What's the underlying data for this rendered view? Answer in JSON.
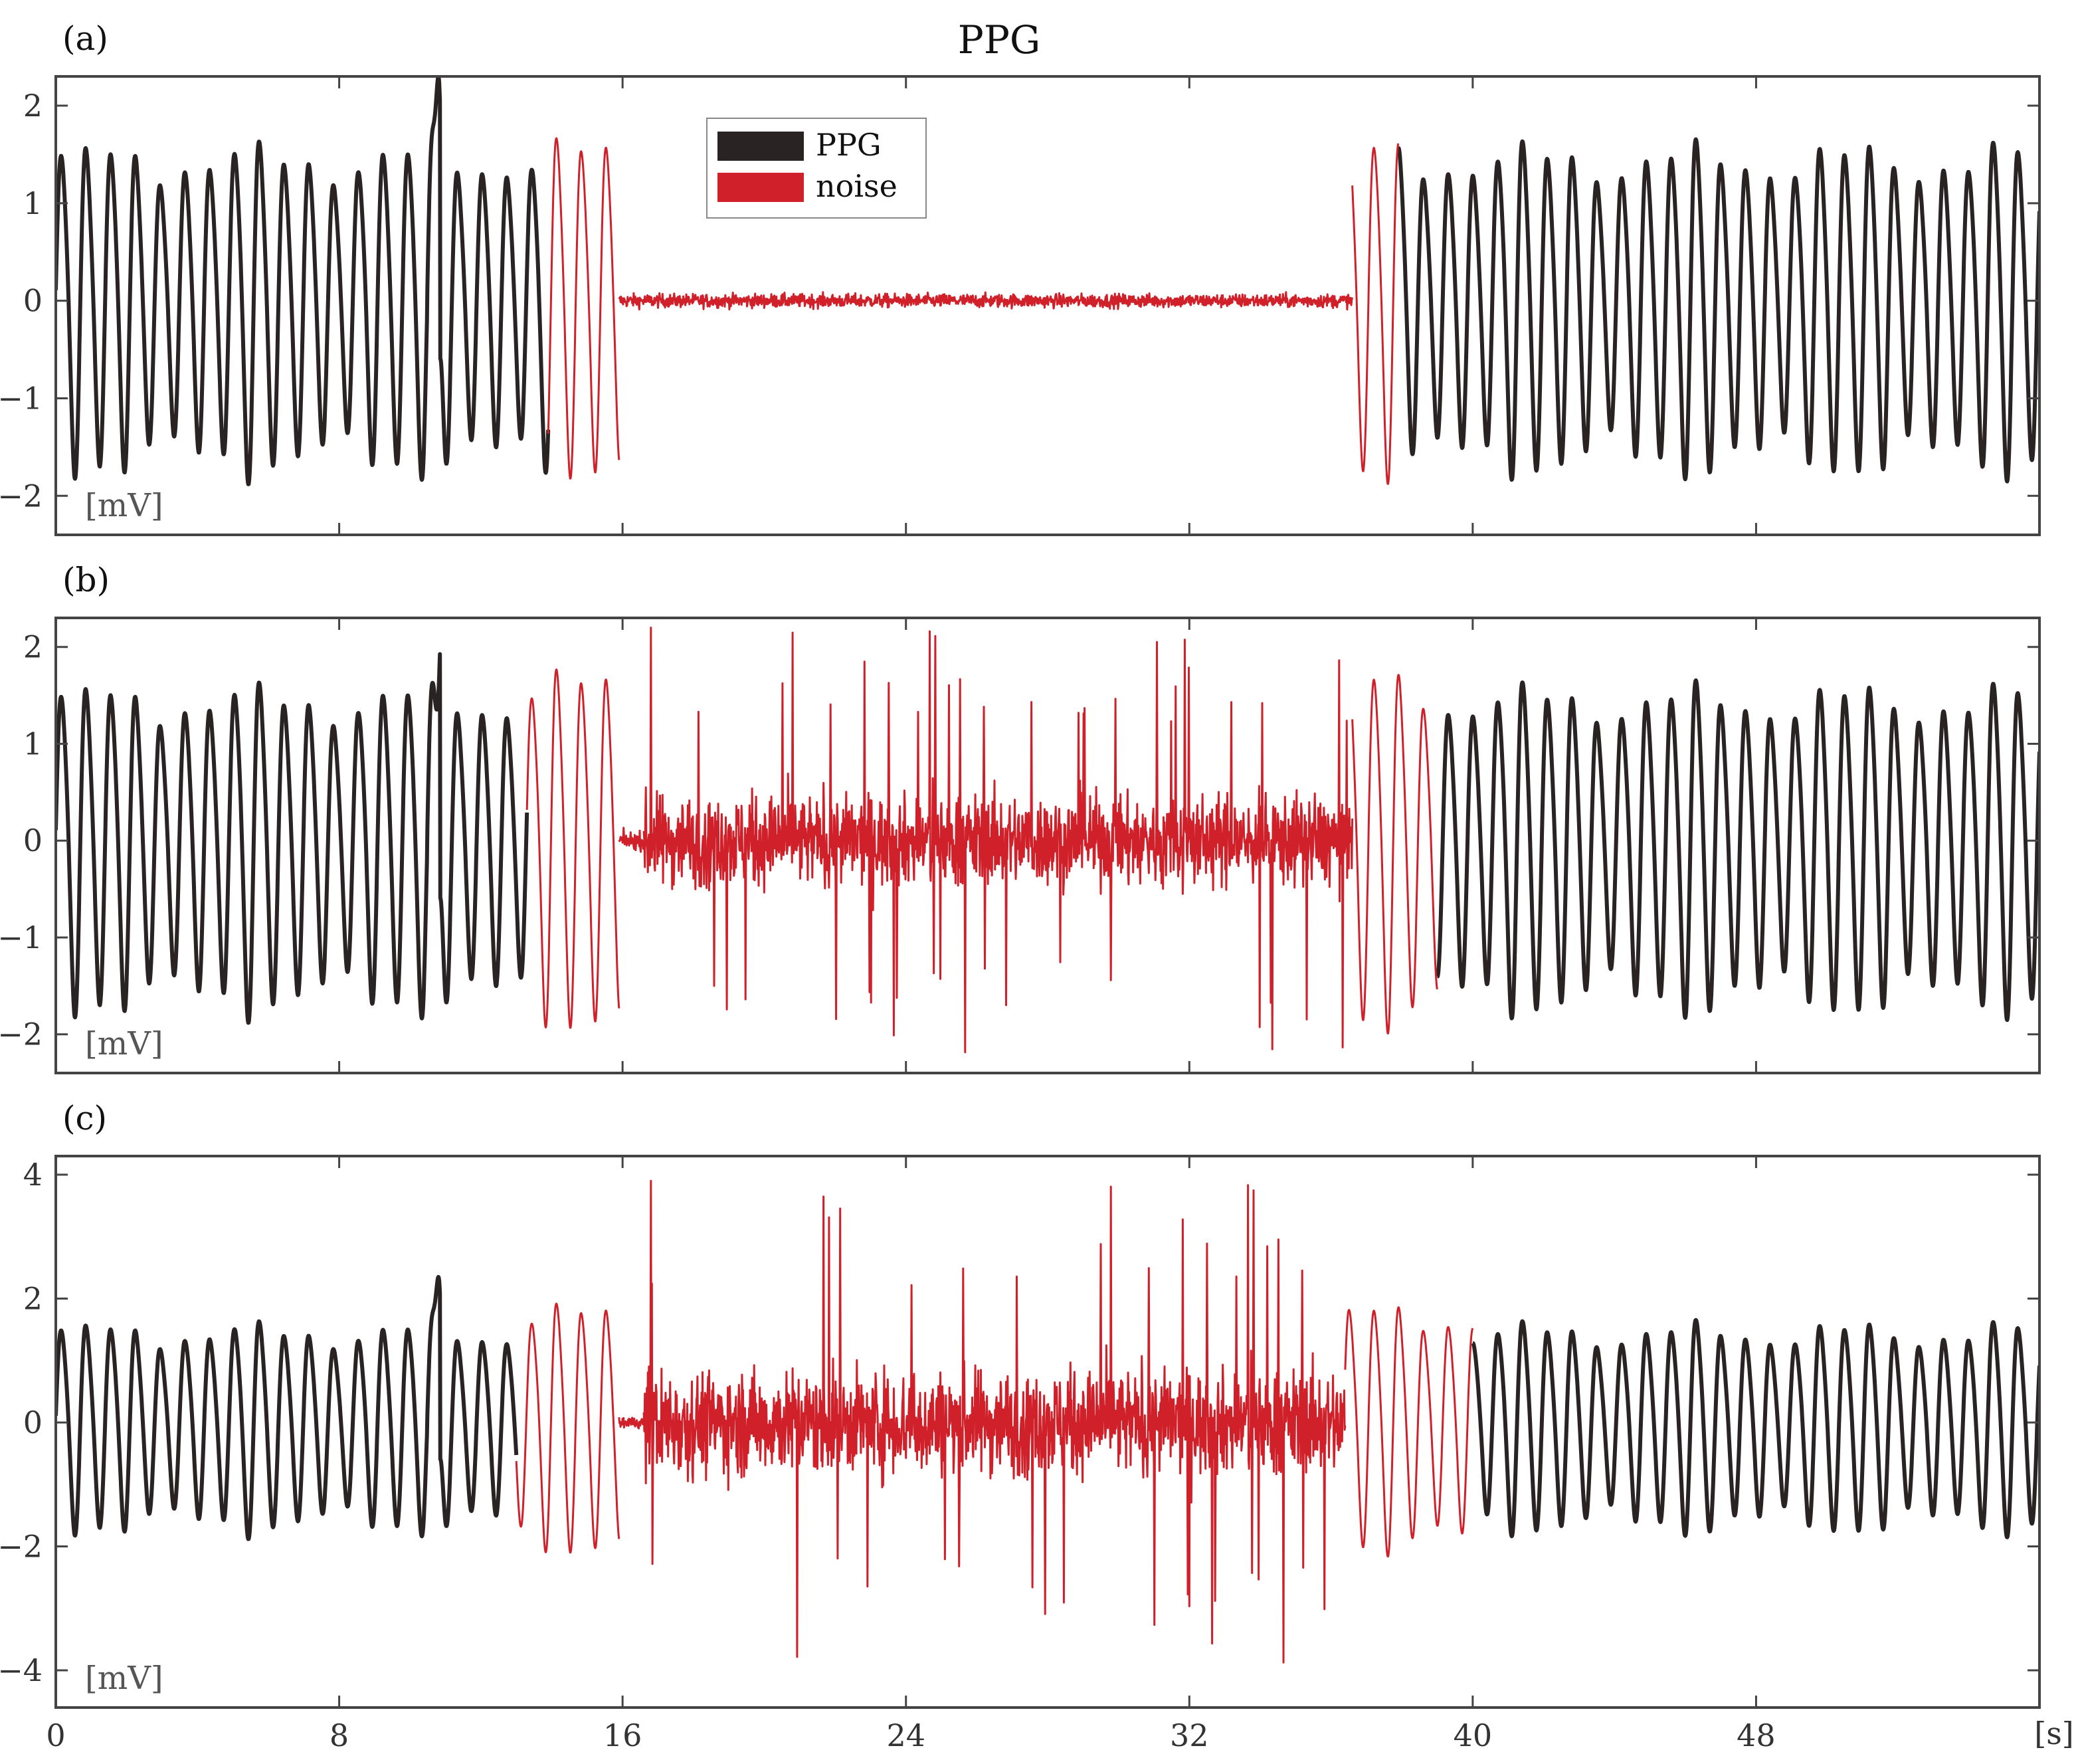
{
  "figure": {
    "title": "PPG",
    "unit_label": "[mV]",
    "x_unit_label": "[s]",
    "legend": [
      {
        "label": "PPG",
        "color": "#2a2324"
      },
      {
        "label": "noise",
        "color": "#d0202a"
      }
    ]
  },
  "chart_data": [
    {
      "type": "line",
      "panel": "(a)",
      "xlim": [
        0,
        56
      ],
      "ylim": [
        -2.4,
        2.3
      ],
      "xticks": [
        0,
        8,
        16,
        24,
        32,
        40,
        48
      ],
      "yticks": [
        -2,
        -1,
        0,
        1,
        2
      ],
      "ylabel": "[mV]",
      "legend_position": "top-center",
      "series": [
        {
          "name": "PPG",
          "color": "#2a2324",
          "segments": [
            [
              0,
              13.9
            ],
            [
              37.9,
              56
            ]
          ],
          "amplitude": 1.6,
          "extremes": [
            [
              10.8,
              2.3
            ],
            [
              10.7,
              -2.25
            ]
          ]
        },
        {
          "name": "noise",
          "color": "#d0202a",
          "segments": [
            [
              13.9,
              15.9
            ],
            [
              36.6,
              37.9
            ]
          ],
          "amplitude": 1.65
        },
        {
          "name": "noise",
          "color": "#d0202a",
          "segments": [
            [
              15.9,
              36.6
            ]
          ],
          "amplitude": 0.15,
          "kind": "random"
        }
      ]
    },
    {
      "type": "line",
      "panel": "(b)",
      "xlim": [
        0,
        56
      ],
      "ylim": [
        -2.4,
        2.3
      ],
      "xticks": [
        0,
        8,
        16,
        24,
        32,
        40,
        48
      ],
      "yticks": [
        -2,
        -1,
        0,
        1,
        2
      ],
      "ylabel": "[mV]",
      "series": [
        {
          "name": "PPG",
          "color": "#2a2324",
          "segments": [
            [
              0,
              13.3
            ],
            [
              39.0,
              56
            ]
          ],
          "amplitude": 1.6,
          "extremes": [
            [
              10.9,
              2.3
            ],
            [
              10.7,
              -2.25
            ]
          ]
        },
        {
          "name": "noise",
          "color": "#d0202a",
          "segments": [
            [
              13.3,
              15.9
            ],
            [
              36.6,
              39.0
            ]
          ],
          "amplitude": 1.75
        },
        {
          "name": "noise",
          "color": "#d0202a",
          "segments": [
            [
              15.9,
              16.6
            ]
          ],
          "amplitude": 0.2,
          "kind": "random"
        },
        {
          "name": "noise",
          "color": "#d0202a",
          "segments": [
            [
              16.6,
              36.6
            ]
          ],
          "amplitude": 1.0,
          "kind": "random",
          "peak": 2.2
        }
      ]
    },
    {
      "type": "line",
      "panel": "(c)",
      "xlim": [
        0,
        56
      ],
      "ylim": [
        -4.6,
        4.3
      ],
      "xticks": [
        0,
        8,
        16,
        24,
        32,
        40,
        48
      ],
      "yticks": [
        -4,
        -2,
        0,
        2,
        4
      ],
      "ylabel": "[mV]",
      "series": [
        {
          "name": "PPG",
          "color": "#2a2324",
          "segments": [
            [
              0,
              13.0
            ],
            [
              40.0,
              56
            ]
          ],
          "amplitude": 1.6,
          "extremes": [
            [
              10.8,
              2.35
            ],
            [
              10.7,
              -2.25
            ]
          ]
        },
        {
          "name": "noise",
          "color": "#d0202a",
          "segments": [
            [
              13.0,
              15.9
            ],
            [
              36.4,
              40.0
            ]
          ],
          "amplitude": 1.9
        },
        {
          "name": "noise",
          "color": "#d0202a",
          "segments": [
            [
              15.9,
              16.6
            ]
          ],
          "amplitude": 0.2,
          "kind": "random"
        },
        {
          "name": "noise",
          "color": "#d0202a",
          "segments": [
            [
              16.6,
              36.4
            ]
          ],
          "amplitude": 1.8,
          "kind": "random",
          "peak": 3.9
        }
      ]
    }
  ]
}
